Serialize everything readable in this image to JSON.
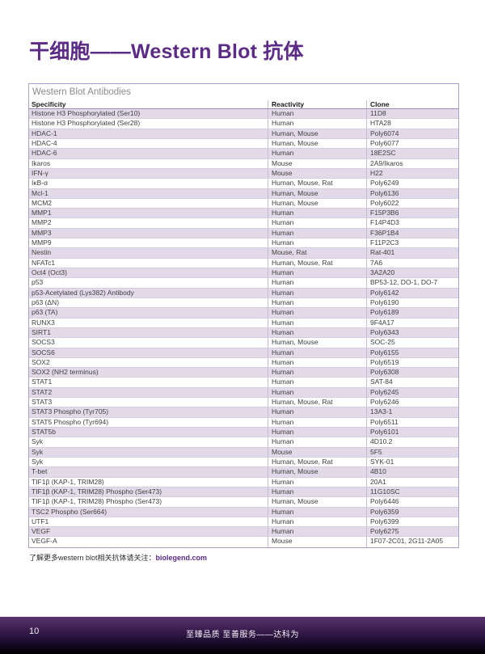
{
  "page": {
    "title": "干细胞——Western Blot 抗体",
    "footnote": {
      "prefix": "了解更多western blot相关抗体请关注：",
      "link": "biolegend.com"
    },
    "footer": {
      "page_number": "10",
      "slogan": "至臻品质 至善服务——达科为"
    }
  },
  "colors": {
    "accent_purple": "#5b2b85",
    "row_lavender": "#e3dae9",
    "table_border": "#ae9dc4",
    "footer_gradient_top": "#5a3470",
    "footer_gradient_bottom": "#000000"
  },
  "table": {
    "title": "Western Blot Antibodies",
    "columns": [
      "Specificity",
      "Reactivity",
      "Clone"
    ],
    "rows": [
      [
        "Histone H3 Phosphorylated (Ser10)",
        "Human",
        "11D8"
      ],
      [
        "Histone H3 Phosphorylated (Ser28)",
        "Human",
        "HTA28"
      ],
      [
        "HDAC-1",
        "Human, Mouse",
        "Poly6074"
      ],
      [
        "HDAC-4",
        "Human, Mouse",
        "Poly6077"
      ],
      [
        "HDAC-6",
        "Human",
        "18E2SC"
      ],
      [
        "Ikaros",
        "Mouse",
        "2A9/Ikaros"
      ],
      [
        "IFN-γ",
        "Mouse",
        "H22"
      ],
      [
        "IκB-α",
        "Human, Mouse, Rat",
        "Poly6249"
      ],
      [
        "Mcl-1",
        "Human, Mouse",
        "Poly6136"
      ],
      [
        "MCM2",
        "Human, Mouse",
        "Poly6022"
      ],
      [
        "MMP1",
        "Human",
        "F15P3B6"
      ],
      [
        "MMP2",
        "Human",
        "F14P4D3"
      ],
      [
        "MMP3",
        "Human",
        "F36P1B4"
      ],
      [
        "MMP9",
        "Human",
        "F11P2C3"
      ],
      [
        "Nestin",
        "Mouse, Rat",
        "Rat-401"
      ],
      [
        "NFATc1",
        "Human, Mouse, Rat",
        "7A6"
      ],
      [
        "Oct4 (Oct3)",
        "Human",
        "3A2A20"
      ],
      [
        "p53",
        "Human",
        "BP53-12, DO-1, DO-7"
      ],
      [
        "p53-Acetylated (Lys382) Antibody",
        "Human",
        "Poly6142"
      ],
      [
        "p63 (ΔN)",
        "Human",
        "Poly6190"
      ],
      [
        "p63 (TA)",
        "Human",
        "Poly6189"
      ],
      [
        "RUNX3",
        "Human",
        "9F4A17"
      ],
      [
        "SIRT1",
        "Human",
        "Poly6343"
      ],
      [
        "SOCS3",
        "Human, Mouse",
        "SOC-25"
      ],
      [
        "SOCS6",
        "Human",
        "Poly6155"
      ],
      [
        "SOX2",
        "Human",
        "Poly6519"
      ],
      [
        "SOX2 (NH2 terminus)",
        "Human",
        "Poly6308"
      ],
      [
        "STAT1",
        "Human",
        "SAT-84"
      ],
      [
        "STAT2",
        "Human",
        "Poly6245"
      ],
      [
        "STAT3",
        "Human, Mouse, Rat",
        "Poly6246"
      ],
      [
        "STAT3 Phospho (Tyr705)",
        "Human",
        "13A3-1"
      ],
      [
        "STAT5 Phospho (Tyr694)",
        "Human",
        "Poly6511"
      ],
      [
        "STAT5b",
        "Human",
        "Poly6101"
      ],
      [
        "Syk",
        "Human",
        "4D10.2"
      ],
      [
        "Syk",
        "Mouse",
        "5F5"
      ],
      [
        "Syk",
        "Human, Mouse, Rat",
        "SYK-01"
      ],
      [
        "T-bet",
        "Human, Mouse",
        "4B10"
      ],
      [
        "TIF1β (KAP-1, TRIM28)",
        "Human",
        "20A1"
      ],
      [
        "TIF1β (KAP-1, TRIM28) Phospho (Ser473)",
        "Human",
        "11G10SC"
      ],
      [
        "TIF1β (KAP-1, TRIM28) Phospho (Ser473)",
        "Human, Mouse",
        "Poly6446"
      ],
      [
        "TSC2 Phospho (Ser664)",
        "Human",
        "Poly6359"
      ],
      [
        "UTF1",
        "Human",
        "Poly6399"
      ],
      [
        "VEGF",
        "Human",
        "Poly6275"
      ],
      [
        "VEGF-A",
        "Mouse",
        "1F07-2C01, 2G11-2A05"
      ]
    ]
  }
}
